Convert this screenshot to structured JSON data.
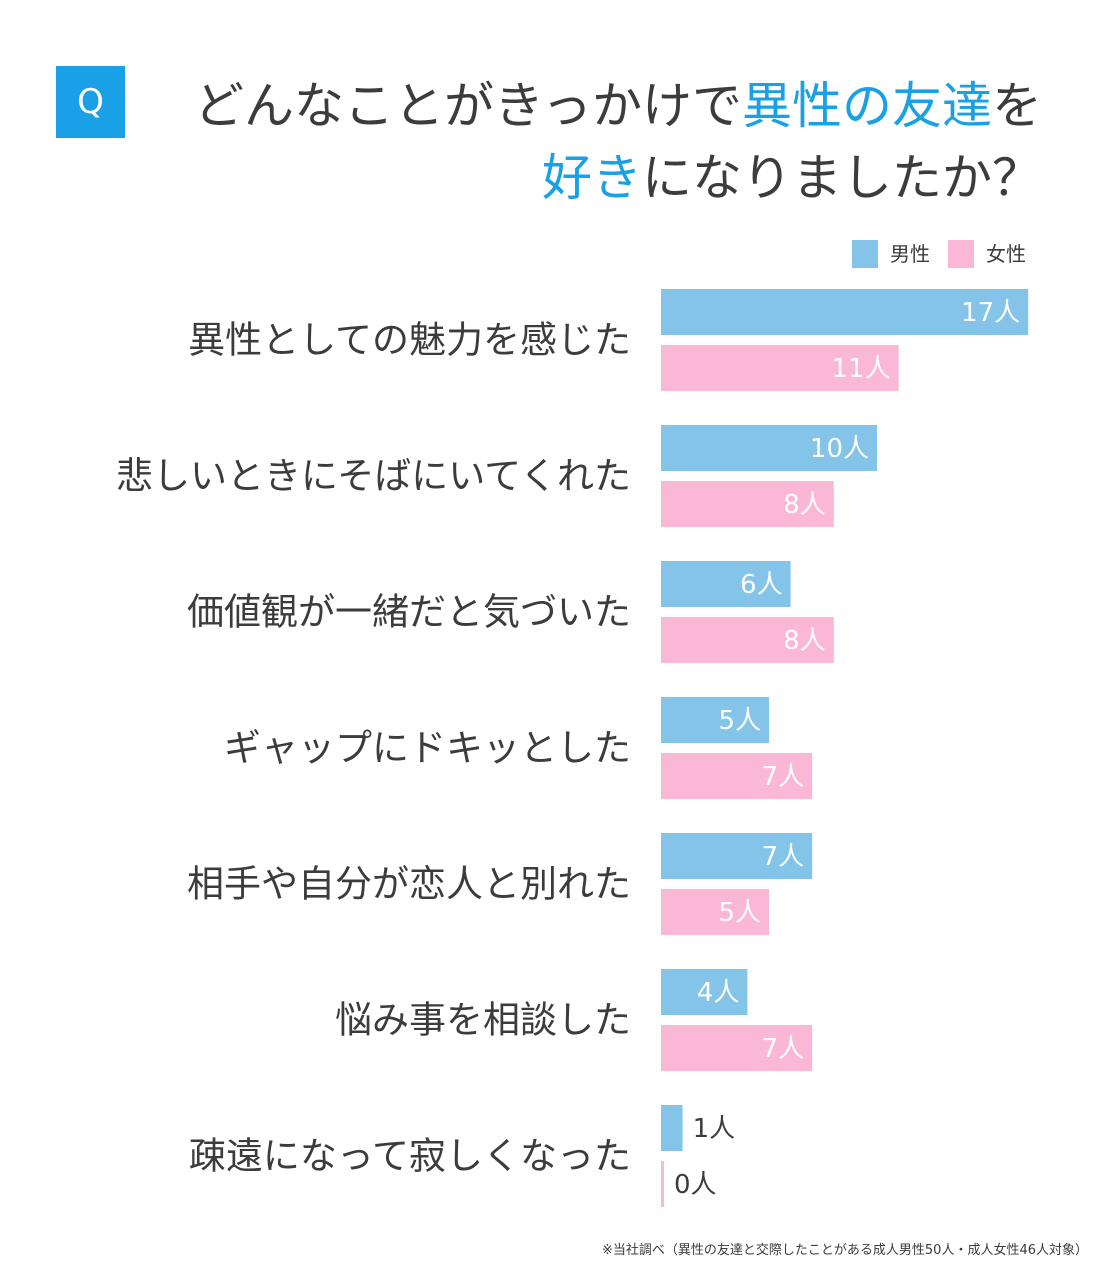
{
  "colors": {
    "accent": "#1aa0e6",
    "male": "#84c4e8",
    "female": "#fbb8d6",
    "text": "#3c3c3c"
  },
  "header": {
    "badge": "Q",
    "line1": {
      "pre": "どんなことがきっかけで",
      "highlight": "異性の友達",
      "post": "を"
    },
    "line2": {
      "highlight": "好き",
      "post": "になりましたか？"
    }
  },
  "legend": {
    "male": "男性",
    "female": "女性"
  },
  "unit": "人",
  "chart_data": {
    "type": "bar",
    "orientation": "horizontal",
    "categories": [
      "異性としての魅力を感じた",
      "悲しいときにそばにいてくれた",
      "価値観が一緒だと気づいた",
      "ギャップにドキッとした",
      "相手や自分が恋人と別れた",
      "悩み事を相談した",
      "疎遠になって寂しくなった"
    ],
    "series": [
      {
        "name": "男性",
        "values": [
          17,
          10,
          6,
          5,
          7,
          4,
          1
        ]
      },
      {
        "name": "女性",
        "values": [
          11,
          8,
          8,
          7,
          5,
          7,
          0
        ]
      }
    ],
    "value_suffix": "人",
    "legend_position": "top-right",
    "grid": false
  },
  "footnote": "※当社調べ（異性の友達と交際したことがある成人男性50人・成人女性46人対象）"
}
